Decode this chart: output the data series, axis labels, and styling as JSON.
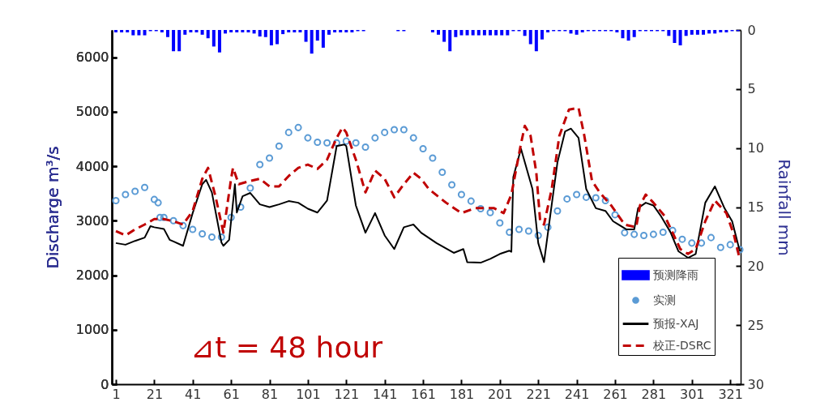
{
  "chart_data": {
    "type": "line",
    "ylabel": "Discharge  m³/s",
    "y2label": "Rainfall  mm",
    "annotations": [
      "⊿t = 48 hour"
    ],
    "xlim": [
      1,
      326
    ],
    "xticks": [
      1,
      21,
      41,
      61,
      81,
      101,
      121,
      141,
      161,
      181,
      201,
      221,
      241,
      261,
      281,
      301,
      321
    ],
    "ylim": [
      0,
      6500
    ],
    "yticks": [
      0,
      1000,
      2000,
      3000,
      4000,
      5000,
      6000
    ],
    "y2lim": [
      30,
      0
    ],
    "y2ticks": [
      0,
      5,
      10,
      15,
      20,
      25,
      30
    ],
    "grid": false,
    "legend": "bottom right",
    "series": [
      {
        "name": "预测降雨",
        "type": "bar",
        "axis": "y2",
        "color": "#0000ff",
        "x": [
          1,
          4,
          7,
          10,
          13,
          16,
          19,
          22,
          25,
          28,
          31,
          34,
          37,
          40,
          43,
          46,
          49,
          52,
          55,
          58,
          61,
          64,
          67,
          70,
          73,
          76,
          79,
          82,
          85,
          88,
          91,
          94,
          97,
          100,
          103,
          106,
          109,
          112,
          115,
          118,
          121,
          124,
          127,
          130,
          133,
          136,
          139,
          142,
          145,
          148,
          151,
          154,
          157,
          160,
          163,
          166,
          169,
          172,
          175,
          178,
          181,
          184,
          187,
          190,
          193,
          196,
          199,
          202,
          205,
          208,
          211,
          214,
          217,
          220,
          223,
          226,
          229,
          232,
          235,
          238,
          241,
          244,
          247,
          250,
          253,
          256,
          259,
          262,
          265,
          268,
          271,
          274,
          277,
          280,
          283,
          286,
          289,
          292,
          295,
          298,
          301,
          304,
          307,
          310,
          313,
          316,
          319,
          322,
          325
        ],
        "values": [
          0.2,
          0.2,
          0.2,
          0.45,
          0.45,
          0.45,
          0.1,
          0.1,
          0.2,
          0.6,
          1.8,
          1.8,
          0.4,
          0.2,
          0.2,
          0.4,
          0.7,
          1.4,
          1.9,
          0.3,
          0.2,
          0.2,
          0.2,
          0.2,
          0.3,
          0.55,
          0.6,
          1.3,
          1.2,
          0.35,
          0.2,
          0.2,
          0.2,
          1.0,
          2.0,
          0.9,
          1.5,
          0.4,
          0.2,
          0.2,
          0.2,
          0.2,
          0.1,
          0.1,
          0,
          0,
          0,
          0,
          0,
          0.1,
          0.1,
          0,
          0,
          0,
          0,
          0.2,
          0.4,
          1.0,
          1.8,
          0.6,
          0.45,
          0.45,
          0.45,
          0.45,
          0.45,
          0.45,
          0.45,
          0.45,
          0.45,
          0.1,
          0.1,
          0.5,
          1.2,
          1.8,
          0.8,
          0.2,
          0.1,
          0.1,
          0.1,
          0.3,
          0.4,
          0.2,
          0.1,
          0.1,
          0.1,
          0.1,
          0.1,
          0.2,
          0.7,
          0.9,
          0.6,
          0.1,
          0.1,
          0.1,
          0.1,
          0.1,
          0.5,
          1.1,
          1.3,
          0.5,
          0.4,
          0.4,
          0.4,
          0.3,
          0.3,
          0.2,
          0.2,
          0.1,
          0.1
        ]
      },
      {
        "name": "实测",
        "type": "scatter",
        "marker": "circle",
        "color": "#5b9bd5",
        "x": [
          1,
          6,
          11,
          16,
          21,
          23,
          24,
          26,
          31,
          36,
          41,
          46,
          51,
          56,
          61,
          66,
          71,
          76,
          81,
          86,
          91,
          96,
          101,
          106,
          111,
          116,
          121,
          126,
          131,
          136,
          141,
          146,
          151,
          156,
          161,
          166,
          171,
          176,
          181,
          186,
          191,
          196,
          201,
          206,
          211,
          216,
          221,
          226,
          231,
          236,
          241,
          246,
          251,
          256,
          261,
          266,
          271,
          276,
          281,
          286,
          291,
          296,
          301,
          306,
          311,
          316,
          321,
          326
        ],
        "values": [
          3370,
          3480,
          3540,
          3610,
          3390,
          3330,
          3060,
          3060,
          3000,
          2910,
          2840,
          2760,
          2700,
          2700,
          3060,
          3250,
          3600,
          4030,
          4150,
          4370,
          4620,
          4710,
          4520,
          4440,
          4430,
          4430,
          4460,
          4430,
          4350,
          4520,
          4620,
          4670,
          4670,
          4520,
          4320,
          4150,
          3890,
          3660,
          3480,
          3360,
          3220,
          3150,
          2960,
          2790,
          2840,
          2810,
          2730,
          2880,
          3180,
          3400,
          3480,
          3430,
          3420,
          3370,
          3110,
          2780,
          2750,
          2730,
          2750,
          2790,
          2820,
          2660,
          2590,
          2590,
          2690,
          2510,
          2560,
          2470
        ]
      },
      {
        "name": "预报-XAJ",
        "line_style": "solid",
        "color": "#000000",
        "x": [
          1,
          6,
          11,
          16,
          19,
          21,
          26,
          29,
          31,
          36,
          41,
          46,
          48,
          51,
          56,
          57,
          60,
          63,
          64,
          67,
          71,
          76,
          81,
          86,
          91,
          96,
          101,
          106,
          111,
          116,
          120,
          121,
          126,
          131,
          136,
          141,
          146,
          151,
          156,
          160,
          168,
          177,
          182,
          184,
          191,
          196,
          201,
          206,
          207,
          208,
          212,
          218,
          221,
          224,
          227,
          231,
          235,
          238,
          242,
          246,
          251,
          256,
          260,
          267,
          271,
          273,
          277,
          281,
          285,
          290,
          294,
          299,
          303,
          308,
          313,
          318,
          322,
          326
        ],
        "values": [
          2590,
          2560,
          2630,
          2690,
          2900,
          2880,
          2850,
          2650,
          2620,
          2540,
          3140,
          3670,
          3750,
          3520,
          2600,
          2540,
          2650,
          3670,
          3150,
          3450,
          3510,
          3300,
          3250,
          3300,
          3360,
          3330,
          3220,
          3150,
          3370,
          4370,
          4400,
          4370,
          3280,
          2780,
          3140,
          2730,
          2480,
          2880,
          2930,
          2780,
          2590,
          2410,
          2480,
          2240,
          2230,
          2300,
          2390,
          2450,
          2430,
          3800,
          4320,
          3580,
          2590,
          2240,
          3030,
          4070,
          4640,
          4690,
          4520,
          3580,
          3230,
          3180,
          2990,
          2840,
          2840,
          3230,
          3330,
          3280,
          3080,
          2780,
          2440,
          2320,
          2390,
          3330,
          3630,
          3230,
          2990,
          2440
        ]
      },
      {
        "name": "校正-DSRC",
        "line_style": "dashed",
        "color": "#c00000",
        "x": [
          1,
          6,
          11,
          16,
          21,
          26,
          31,
          36,
          41,
          46,
          49,
          53,
          57,
          61,
          62,
          65,
          71,
          76,
          81,
          86,
          91,
          96,
          101,
          106,
          111,
          116,
          119,
          121,
          126,
          131,
          136,
          141,
          146,
          151,
          156,
          160,
          164,
          173,
          181,
          188,
          198,
          203,
          207,
          212,
          214,
          217,
          220,
          222,
          224,
          228,
          232,
          237,
          242,
          245,
          249,
          253,
          259,
          266,
          272,
          274,
          277,
          281,
          287,
          291,
          295,
          299,
          303,
          308,
          313,
          319,
          323,
          326
        ],
        "values": [
          2810,
          2730,
          2840,
          2930,
          3030,
          3030,
          2990,
          2930,
          3180,
          3770,
          3970,
          3430,
          2780,
          3770,
          3970,
          3670,
          3730,
          3770,
          3630,
          3630,
          3820,
          3970,
          4030,
          3950,
          4120,
          4520,
          4710,
          4620,
          4120,
          3520,
          3920,
          3770,
          3430,
          3670,
          3880,
          3770,
          3580,
          3330,
          3140,
          3230,
          3230,
          3140,
          3480,
          4410,
          4740,
          4560,
          3880,
          2990,
          2930,
          3580,
          4560,
          5040,
          5070,
          4560,
          3730,
          3520,
          3280,
          2930,
          2880,
          3280,
          3480,
          3330,
          3080,
          2780,
          2480,
          2390,
          2480,
          2990,
          3370,
          3140,
          2730,
          2290
        ]
      }
    ]
  }
}
